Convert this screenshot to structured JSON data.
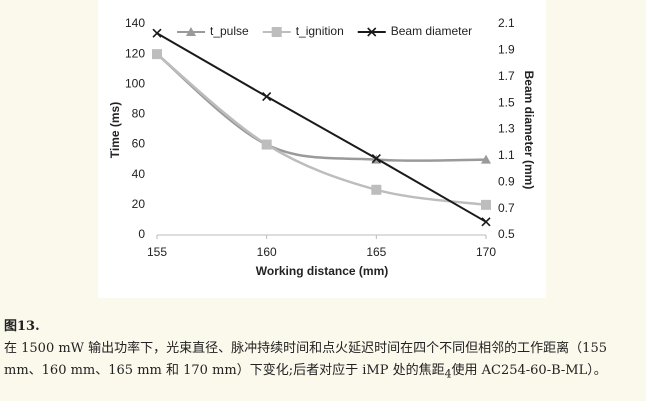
{
  "chart_data": {
    "type": "line",
    "x": [
      155,
      160,
      165,
      170
    ],
    "xlim": [
      155,
      170
    ],
    "xticks": [
      155,
      160,
      165,
      170
    ],
    "ylim": [
      0,
      140
    ],
    "yticks": [
      0,
      20,
      40,
      60,
      80,
      100,
      120,
      140
    ],
    "y2lim": [
      0.5,
      2.1
    ],
    "y2ticks": [
      0.5,
      0.7,
      0.9,
      1.1,
      1.3,
      1.5,
      1.7,
      1.9,
      2.1
    ],
    "xlabel": "Working distance (mm)",
    "ylabel": "Time (ms)",
    "y2label": "Beam diameter (mm)",
    "legend": "top",
    "series": [
      {
        "name": "t_pulse",
        "color": "#9a9a9a",
        "marker": "triangle",
        "smooth": true,
        "values": [
          120,
          60,
          50,
          50
        ]
      },
      {
        "name": "t_ignition",
        "color": "#bdbdbd",
        "marker": "square",
        "smooth": true,
        "values": [
          120,
          60,
          30,
          20
        ]
      },
      {
        "name": "Beam diameter",
        "color": "#1a1a1a",
        "marker": "x",
        "smooth": false,
        "axis": "y2",
        "values": [
          2.03,
          1.55,
          1.08,
          0.6
        ]
      }
    ]
  },
  "caption": {
    "figure": "图13.",
    "text_before": "在 1500 mW 输出功率下，光束直径、脉冲持续时间和点火延迟时间在四个不同但相邻的工作距离（155 mm、160 mm、165 mm 和 170 mm）下变化;后者对应于 iMP 处的焦距",
    "sub": "4",
    "text_after": "使用 AC254-60-B-ML）。"
  }
}
